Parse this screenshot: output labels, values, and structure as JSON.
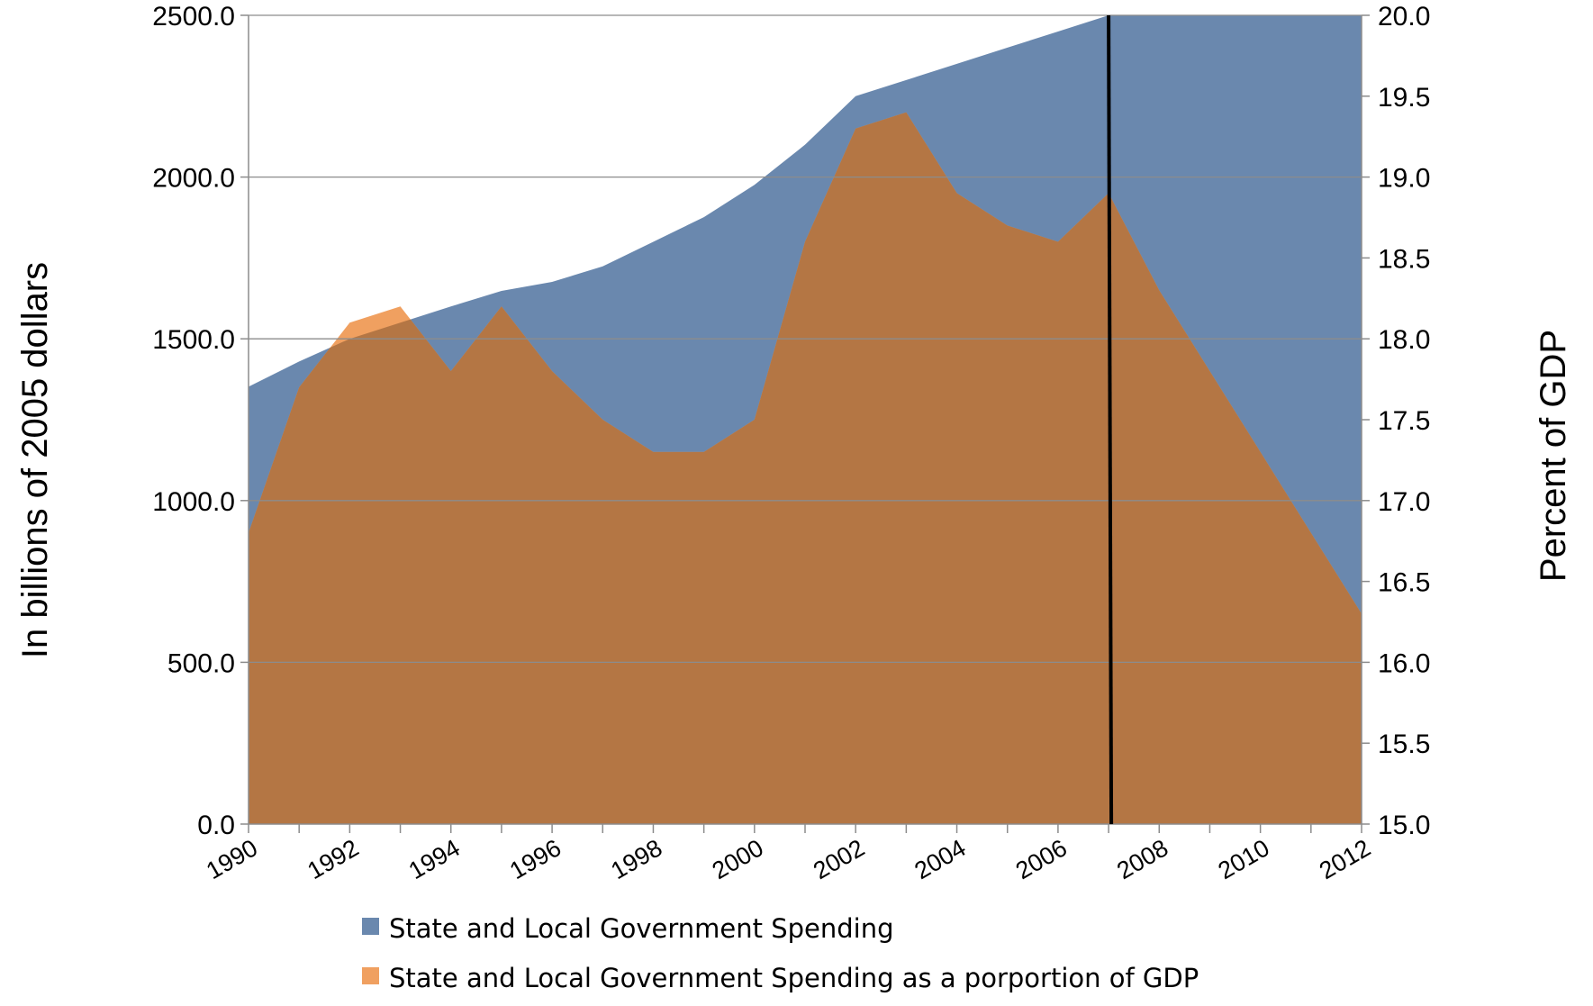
{
  "chart_data": {
    "type": "area",
    "x": [
      1990,
      1991,
      1992,
      1993,
      1994,
      1995,
      1996,
      1997,
      1998,
      1999,
      2000,
      2001,
      2002,
      2003,
      2004,
      2005,
      2006,
      2007,
      2008,
      2009,
      2010,
      2011,
      2012
    ],
    "x_tick_labels": [
      "1990",
      "1992",
      "1994",
      "1996",
      "1998",
      "2000",
      "2002",
      "2004",
      "2006",
      "2008",
      "2010",
      "2012"
    ],
    "series": [
      {
        "name": "State and Local Government Spending",
        "axis": "left",
        "color": "#6a88ae",
        "values": [
          1352,
          1430,
          1500,
          1550,
          1600,
          1648,
          1676,
          1724,
          1800,
          1876,
          1976,
          2100,
          2250,
          2300,
          2350,
          2400,
          2450,
          2500,
          2500,
          2500,
          2500,
          2500,
          2500
        ]
      },
      {
        "name": "State and Local Government Spending as a porportion of GDP",
        "axis": "right",
        "color": "#f0a060",
        "overlap_color": "#b47644",
        "values": [
          16.8,
          17.7,
          18.1,
          18.2,
          17.8,
          18.2,
          17.8,
          17.5,
          17.3,
          17.3,
          17.5,
          18.6,
          19.3,
          19.4,
          18.9,
          18.7,
          18.6,
          18.9,
          18.3,
          17.8,
          17.3,
          16.8,
          16.3
        ]
      }
    ],
    "ylabel": "In billions of 2005 dollars",
    "y2label": "Percent of GDP",
    "ylim": [
      0,
      2500
    ],
    "y_ticks": [
      "0.0",
      "500.0",
      "1000.0",
      "1500.0",
      "2000.0",
      "2500.0"
    ],
    "y2lim": [
      15,
      20
    ],
    "y2_ticks": [
      "15.0",
      "15.5",
      "16.0",
      "16.5",
      "17.0",
      "17.5",
      "18.0",
      "18.5",
      "19.0",
      "19.5",
      "20.0"
    ],
    "marker_line_x": 2007,
    "grid": "horizontal",
    "legend_placement": "bottom"
  }
}
